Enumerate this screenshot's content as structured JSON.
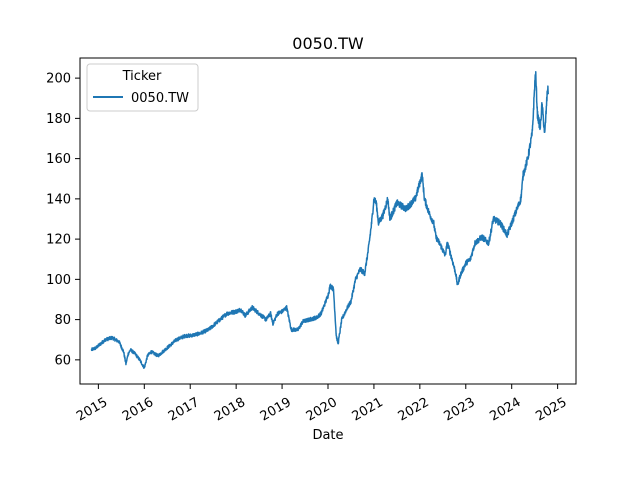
{
  "chart_data": {
    "type": "line",
    "title": "0050.TW",
    "xlabel": "Date",
    "ylabel": "",
    "xlim": [
      2014.6,
      2025.4
    ],
    "ylim": [
      48,
      210
    ],
    "x_ticks": [
      2015,
      2016,
      2017,
      2018,
      2019,
      2020,
      2021,
      2022,
      2023,
      2024,
      2025
    ],
    "x_tick_labels": [
      "2015",
      "2016",
      "2017",
      "2018",
      "2019",
      "2020",
      "2021",
      "2022",
      "2023",
      "2024",
      "2025"
    ],
    "y_ticks": [
      60,
      80,
      100,
      120,
      140,
      160,
      180,
      200
    ],
    "y_tick_labels": [
      "60",
      "80",
      "100",
      "120",
      "140",
      "160",
      "180",
      "200"
    ],
    "legend": {
      "title": "Ticker",
      "position": "top-left",
      "entries": [
        "0050.TW"
      ]
    },
    "series": [
      {
        "name": "0050.TW",
        "color": "#1f77b4",
        "x": [
          2014.85,
          2014.95,
          2015.05,
          2015.15,
          2015.3,
          2015.45,
          2015.55,
          2015.6,
          2015.65,
          2015.7,
          2015.8,
          2015.9,
          2016.0,
          2016.07,
          2016.15,
          2016.3,
          2016.5,
          2016.6,
          2016.7,
          2016.8,
          2016.9,
          2017.0,
          2017.2,
          2017.4,
          2017.6,
          2017.8,
          2018.0,
          2018.1,
          2018.2,
          2018.35,
          2018.5,
          2018.65,
          2018.75,
          2018.8,
          2018.9,
          2019.0,
          2019.1,
          2019.2,
          2019.35,
          2019.45,
          2019.6,
          2019.75,
          2019.85,
          2020.0,
          2020.05,
          2020.12,
          2020.18,
          2020.22,
          2020.3,
          2020.4,
          2020.5,
          2020.6,
          2020.7,
          2020.8,
          2020.88,
          2020.95,
          2021.0,
          2021.05,
          2021.1,
          2021.2,
          2021.3,
          2021.35,
          2021.5,
          2021.7,
          2021.9,
          2022.0,
          2022.05,
          2022.1,
          2022.2,
          2022.3,
          2022.35,
          2022.45,
          2022.55,
          2022.6,
          2022.7,
          2022.78,
          2022.82,
          2022.88,
          2023.0,
          2023.1,
          2023.2,
          2023.35,
          2023.5,
          2023.6,
          2023.75,
          2023.9,
          2024.0,
          2024.1,
          2024.2,
          2024.25,
          2024.35,
          2024.45,
          2024.5,
          2024.52,
          2024.56,
          2024.62,
          2024.66,
          2024.72,
          2024.78,
          2024.8
        ],
        "values": [
          65,
          66,
          68,
          70,
          71,
          69,
          64,
          58,
          63,
          65,
          63,
          60,
          56,
          62,
          64,
          62,
          66,
          68,
          70,
          71,
          72,
          72,
          73,
          75,
          79,
          83,
          84,
          85,
          82,
          86,
          83,
          80,
          83,
          78,
          83,
          84,
          86,
          75,
          75,
          79,
          80,
          81,
          83,
          92,
          97,
          95,
          72,
          68,
          80,
          85,
          89,
          100,
          105,
          103,
          115,
          128,
          140,
          138,
          128,
          132,
          140,
          130,
          138,
          135,
          140,
          148,
          152,
          140,
          133,
          128,
          121,
          117,
          112,
          118,
          110,
          103,
          97,
          102,
          108,
          110,
          118,
          121,
          118,
          130,
          128,
          122,
          128,
          134,
          140,
          152,
          160,
          173,
          196,
          203,
          182,
          175,
          187,
          172,
          195,
          192
        ]
      }
    ]
  }
}
